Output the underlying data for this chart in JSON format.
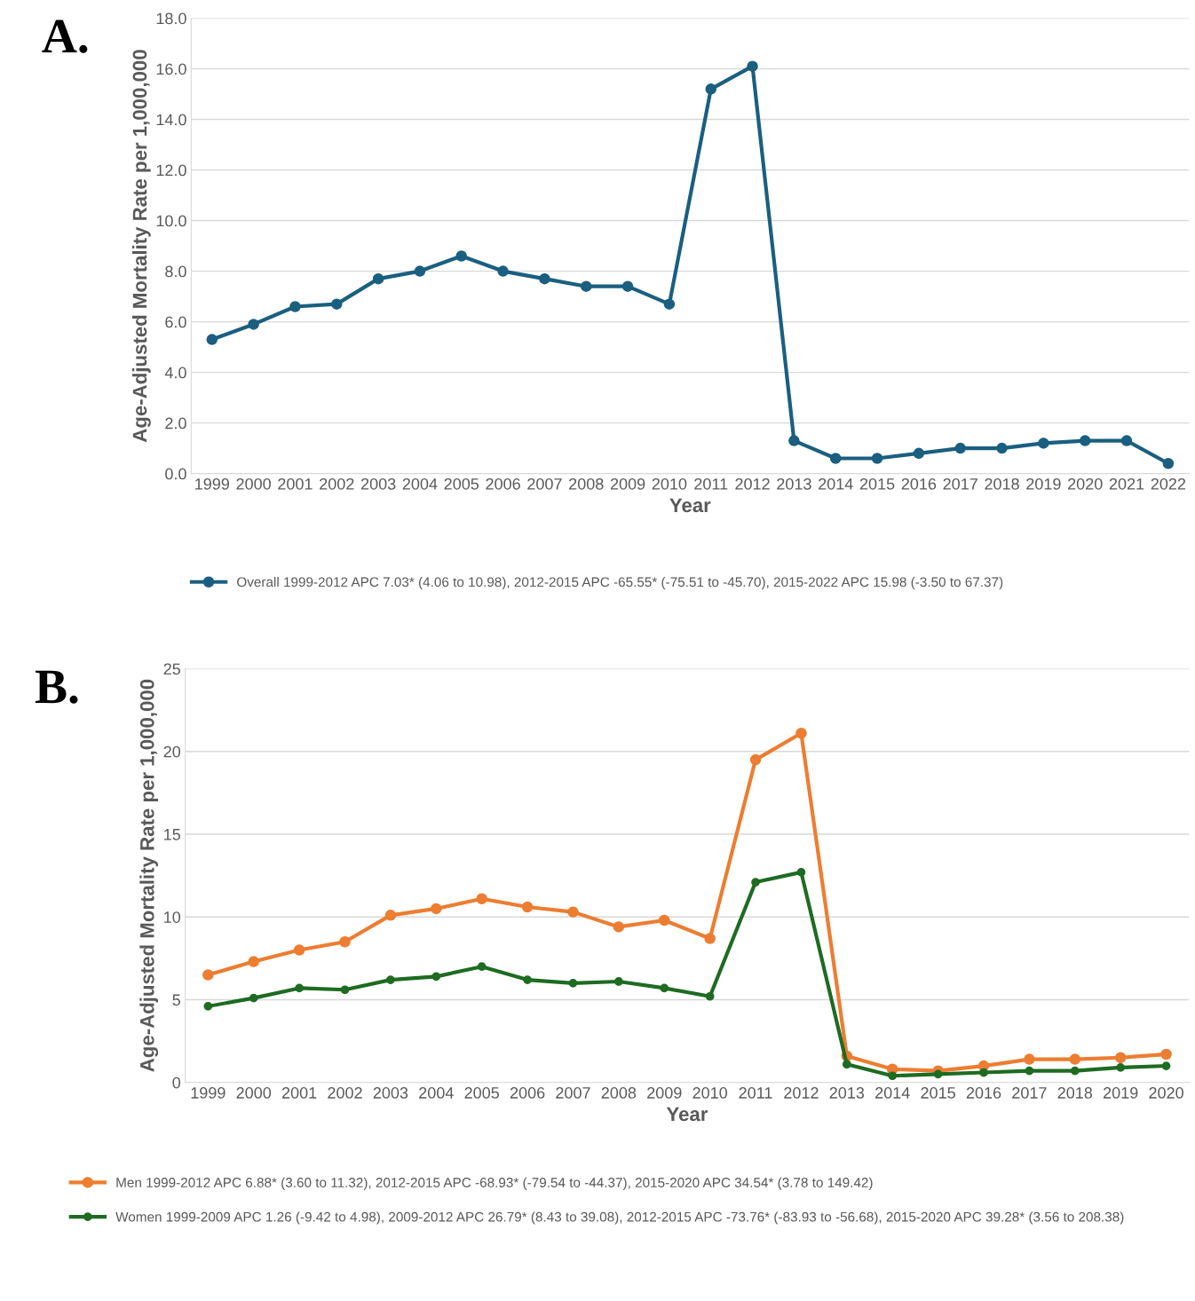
{
  "chart_data": [
    {
      "type": "line",
      "xlabel": "Year",
      "ylabel": "Age-Adjusted Mortality Rate per 1,000,000",
      "annotations": [
        "A."
      ],
      "categories": [
        "1999",
        "2000",
        "2001",
        "2002",
        "2003",
        "2004",
        "2005",
        "2006",
        "2007",
        "2008",
        "2009",
        "2010",
        "2011",
        "2012",
        "2013",
        "2014",
        "2015",
        "2016",
        "2017",
        "2018",
        "2019",
        "2020",
        "2021",
        "2022"
      ],
      "series": [
        {
          "name": "Overall 1999-2012 APC 7.03* (4.06 to 10.98), 2012-2015 APC -65.55* (-75.51 to -45.70), 2015-2022 APC 15.98 (-3.50 to 67.37)",
          "color": "#1a5f80",
          "values": [
            5.3,
            5.9,
            6.6,
            6.7,
            7.7,
            8.0,
            8.6,
            8.0,
            7.7,
            7.4,
            7.4,
            6.7,
            15.2,
            16.1,
            1.3,
            0.6,
            0.6,
            0.8,
            1.0,
            1.0,
            1.2,
            1.3,
            1.3,
            0.4
          ]
        }
      ],
      "ylim": [
        0,
        18
      ],
      "yticks": [
        {
          "value": 0,
          "label": "0.0"
        },
        {
          "value": 2,
          "label": "2.0"
        },
        {
          "value": 4,
          "label": "4.0"
        },
        {
          "value": 6,
          "label": "6.0"
        },
        {
          "value": 8,
          "label": "8.0"
        },
        {
          "value": 10,
          "label": "10.0"
        },
        {
          "value": 12,
          "label": "12.0"
        },
        {
          "value": 14,
          "label": "14.0"
        },
        {
          "value": 16,
          "label": "16.0"
        },
        {
          "value": 18,
          "label": "18.0"
        }
      ],
      "grid": "y",
      "legend": "bottom",
      "marker": "circle",
      "line_style": "solid"
    },
    {
      "type": "line",
      "xlabel": "Year",
      "ylabel": "Age-Adjusted Mortality Rate per 1,000,000",
      "annotations": [
        "B."
      ],
      "categories": [
        "1999",
        "2000",
        "2001",
        "2002",
        "2003",
        "2004",
        "2005",
        "2006",
        "2007",
        "2008",
        "2009",
        "2010",
        "2011",
        "2012",
        "2013",
        "2014",
        "2015",
        "2016",
        "2017",
        "2018",
        "2019",
        "2020"
      ],
      "series": [
        {
          "name": "Men 1999-2012 APC 6.88* (3.60 to 11.32), 2012-2015 APC -68.93* (-79.54 to -44.37), 2015-2020 APC 34.54* (3.78 to 149.42)",
          "color": "#ed7d31",
          "values": [
            6.5,
            7.3,
            8.0,
            8.5,
            10.1,
            10.5,
            11.1,
            10.6,
            10.3,
            9.4,
            9.8,
            8.7,
            19.5,
            21.1,
            1.6,
            0.8,
            0.7,
            1.0,
            1.4,
            1.4,
            1.5,
            1.7
          ]
        },
        {
          "name": "Women 1999-2009 APC 1.26 (-9.42 to 4.98), 2009-2012 APC 26.79* (8.43 to 39.08), 2012-2015 APC -73.76* (-83.93 to -56.68), 2015-2020 APC 39.28* (3.56 to 208.38)",
          "color": "#1e6b22",
          "values": [
            4.6,
            5.1,
            5.7,
            5.6,
            6.2,
            6.4,
            7.0,
            6.2,
            6.0,
            6.1,
            5.7,
            5.2,
            12.1,
            12.7,
            1.1,
            0.4,
            0.5,
            0.6,
            0.7,
            0.7,
            0.9,
            1.0
          ]
        }
      ],
      "ylim": [
        0,
        25
      ],
      "yticks": [
        0,
        5,
        10,
        15,
        20,
        25
      ],
      "grid": "y",
      "legend": "bottom",
      "marker": "circle",
      "line_style": "solid"
    }
  ]
}
